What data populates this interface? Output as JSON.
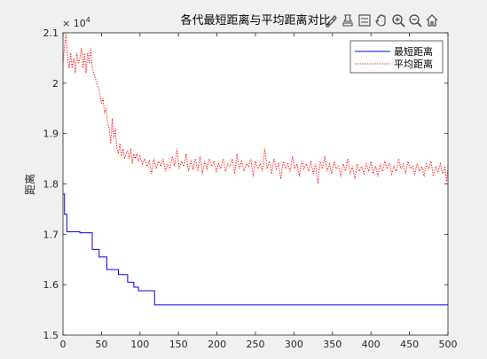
{
  "chart_data": {
    "type": "line",
    "title": "各代最短距离与平均距离对比",
    "xlabel": "",
    "ylabel": "距离",
    "xlim": [
      0,
      500
    ],
    "ylim": [
      15000,
      21000
    ],
    "x_ticks": [
      0,
      50,
      100,
      150,
      200,
      250,
      300,
      350,
      400,
      450,
      500
    ],
    "y_ticks": [
      15000,
      16000,
      17000,
      18000,
      19000,
      20000,
      21000
    ],
    "y_tick_labels": [
      "1.5",
      "1.6",
      "1.7",
      "1.8",
      "1.9",
      "2",
      "2.1"
    ],
    "y_exponent_label": "× 10",
    "y_exponent_power": "4",
    "grid": false,
    "legend_position": "top-right",
    "series": [
      {
        "name": "最短距离",
        "color": "#0000ff",
        "style": "solid",
        "step": true,
        "points": [
          [
            0,
            17800
          ],
          [
            2,
            17400
          ],
          [
            5,
            17050
          ],
          [
            20,
            17050
          ],
          [
            22,
            17030
          ],
          [
            35,
            17030
          ],
          [
            38,
            16700
          ],
          [
            45,
            16700
          ],
          [
            47,
            16550
          ],
          [
            55,
            16550
          ],
          [
            57,
            16300
          ],
          [
            70,
            16300
          ],
          [
            72,
            16200
          ],
          [
            82,
            16200
          ],
          [
            84,
            16050
          ],
          [
            90,
            16050
          ],
          [
            92,
            15950
          ],
          [
            96,
            15950
          ],
          [
            98,
            15880
          ],
          [
            118,
            15880
          ],
          [
            119,
            15600
          ],
          [
            500,
            15600
          ]
        ]
      },
      {
        "name": "平均距离",
        "color": "#ff0000",
        "style": "dotted",
        "step": false,
        "points": [
          [
            0,
            20400
          ],
          [
            2,
            20700
          ],
          [
            4,
            21000
          ],
          [
            6,
            20500
          ],
          [
            8,
            20300
          ],
          [
            10,
            20600
          ],
          [
            12,
            20300
          ],
          [
            14,
            20500
          ],
          [
            16,
            20200
          ],
          [
            18,
            20600
          ],
          [
            20,
            20400
          ],
          [
            22,
            20500
          ],
          [
            24,
            20700
          ],
          [
            26,
            20300
          ],
          [
            28,
            20600
          ],
          [
            30,
            20200
          ],
          [
            32,
            20600
          ],
          [
            34,
            20400
          ],
          [
            36,
            20700
          ],
          [
            38,
            20300
          ],
          [
            40,
            20200
          ],
          [
            42,
            20100
          ],
          [
            44,
            20000
          ],
          [
            46,
            19900
          ],
          [
            48,
            19800
          ],
          [
            50,
            19600
          ],
          [
            52,
            19700
          ],
          [
            54,
            19400
          ],
          [
            56,
            19500
          ],
          [
            58,
            19200
          ],
          [
            60,
            19100
          ],
          [
            62,
            18800
          ],
          [
            64,
            19300
          ],
          [
            66,
            18900
          ],
          [
            68,
            19100
          ],
          [
            70,
            18700
          ],
          [
            72,
            18600
          ],
          [
            74,
            18800
          ],
          [
            76,
            18550
          ],
          [
            78,
            18700
          ],
          [
            80,
            18500
          ],
          [
            82,
            18600
          ],
          [
            84,
            18650
          ],
          [
            86,
            18500
          ],
          [
            88,
            18700
          ],
          [
            90,
            18400
          ],
          [
            92,
            18600
          ],
          [
            94,
            18500
          ],
          [
            96,
            18600
          ],
          [
            98,
            18450
          ],
          [
            100,
            18550
          ],
          [
            103,
            18400
          ],
          [
            106,
            18500
          ],
          [
            109,
            18350
          ],
          [
            112,
            18450
          ],
          [
            115,
            18200
          ],
          [
            118,
            18500
          ],
          [
            121,
            18300
          ],
          [
            124,
            18450
          ],
          [
            127,
            18350
          ],
          [
            130,
            18500
          ],
          [
            133,
            18250
          ],
          [
            136,
            18400
          ],
          [
            139,
            18300
          ],
          [
            142,
            18550
          ],
          [
            145,
            18350
          ],
          [
            148,
            18700
          ],
          [
            151,
            18300
          ],
          [
            154,
            18450
          ],
          [
            157,
            18350
          ],
          [
            160,
            18600
          ],
          [
            163,
            18250
          ],
          [
            166,
            18450
          ],
          [
            169,
            18300
          ],
          [
            172,
            18500
          ],
          [
            175,
            18250
          ],
          [
            178,
            18550
          ],
          [
            181,
            18200
          ],
          [
            184,
            18450
          ],
          [
            187,
            18300
          ],
          [
            190,
            18500
          ],
          [
            193,
            18350
          ],
          [
            196,
            18450
          ],
          [
            199,
            18250
          ],
          [
            202,
            18400
          ],
          [
            205,
            18300
          ],
          [
            208,
            18500
          ],
          [
            211,
            18250
          ],
          [
            214,
            18400
          ],
          [
            217,
            18350
          ],
          [
            220,
            18500
          ],
          [
            223,
            18200
          ],
          [
            226,
            18600
          ],
          [
            229,
            18300
          ],
          [
            232,
            18450
          ],
          [
            235,
            18250
          ],
          [
            238,
            18400
          ],
          [
            241,
            18350
          ],
          [
            244,
            18500
          ],
          [
            247,
            18150
          ],
          [
            250,
            18450
          ],
          [
            253,
            18300
          ],
          [
            256,
            18400
          ],
          [
            259,
            18250
          ],
          [
            262,
            18700
          ],
          [
            265,
            18300
          ],
          [
            268,
            18450
          ],
          [
            271,
            18200
          ],
          [
            274,
            18500
          ],
          [
            277,
            18300
          ],
          [
            280,
            18400
          ],
          [
            283,
            18100
          ],
          [
            286,
            18450
          ],
          [
            289,
            18300
          ],
          [
            292,
            18400
          ],
          [
            295,
            18250
          ],
          [
            298,
            18550
          ],
          [
            301,
            18300
          ],
          [
            304,
            18400
          ],
          [
            307,
            18150
          ],
          [
            310,
            18450
          ],
          [
            313,
            18300
          ],
          [
            316,
            18400
          ],
          [
            319,
            18250
          ],
          [
            322,
            18450
          ],
          [
            325,
            18200
          ],
          [
            328,
            18400
          ],
          [
            331,
            18000
          ],
          [
            334,
            18450
          ],
          [
            337,
            18300
          ],
          [
            340,
            18550
          ],
          [
            343,
            18250
          ],
          [
            346,
            18400
          ],
          [
            349,
            18200
          ],
          [
            352,
            18450
          ],
          [
            355,
            18300
          ],
          [
            358,
            18350
          ],
          [
            361,
            18150
          ],
          [
            364,
            18400
          ],
          [
            367,
            18250
          ],
          [
            370,
            18500
          ],
          [
            373,
            18200
          ],
          [
            376,
            18350
          ],
          [
            379,
            18100
          ],
          [
            382,
            18400
          ],
          [
            385,
            18250
          ],
          [
            388,
            18350
          ],
          [
            391,
            18200
          ],
          [
            394,
            18400
          ],
          [
            397,
            18250
          ],
          [
            400,
            18450
          ],
          [
            403,
            18200
          ],
          [
            406,
            18350
          ],
          [
            409,
            18150
          ],
          [
            412,
            18400
          ],
          [
            415,
            18250
          ],
          [
            418,
            18450
          ],
          [
            421,
            18300
          ],
          [
            424,
            18400
          ],
          [
            427,
            18200
          ],
          [
            430,
            18350
          ],
          [
            433,
            18250
          ],
          [
            436,
            18500
          ],
          [
            439,
            18300
          ],
          [
            442,
            18400
          ],
          [
            445,
            18200
          ],
          [
            448,
            18450
          ],
          [
            451,
            18300
          ],
          [
            454,
            18350
          ],
          [
            457,
            18200
          ],
          [
            460,
            18400
          ],
          [
            463,
            18250
          ],
          [
            466,
            18350
          ],
          [
            469,
            18150
          ],
          [
            472,
            18400
          ],
          [
            475,
            18300
          ],
          [
            478,
            18450
          ],
          [
            481,
            18150
          ],
          [
            484,
            18350
          ],
          [
            487,
            18250
          ],
          [
            490,
            18400
          ],
          [
            493,
            18200
          ],
          [
            496,
            18350
          ],
          [
            498,
            18050
          ],
          [
            500,
            18300
          ]
        ]
      }
    ]
  },
  "toolbar": {
    "icons": [
      "brush-icon",
      "data-cursor-icon",
      "legend-icon",
      "pan-hand-icon",
      "zoom-in-icon",
      "zoom-out-icon",
      "home-icon"
    ]
  }
}
